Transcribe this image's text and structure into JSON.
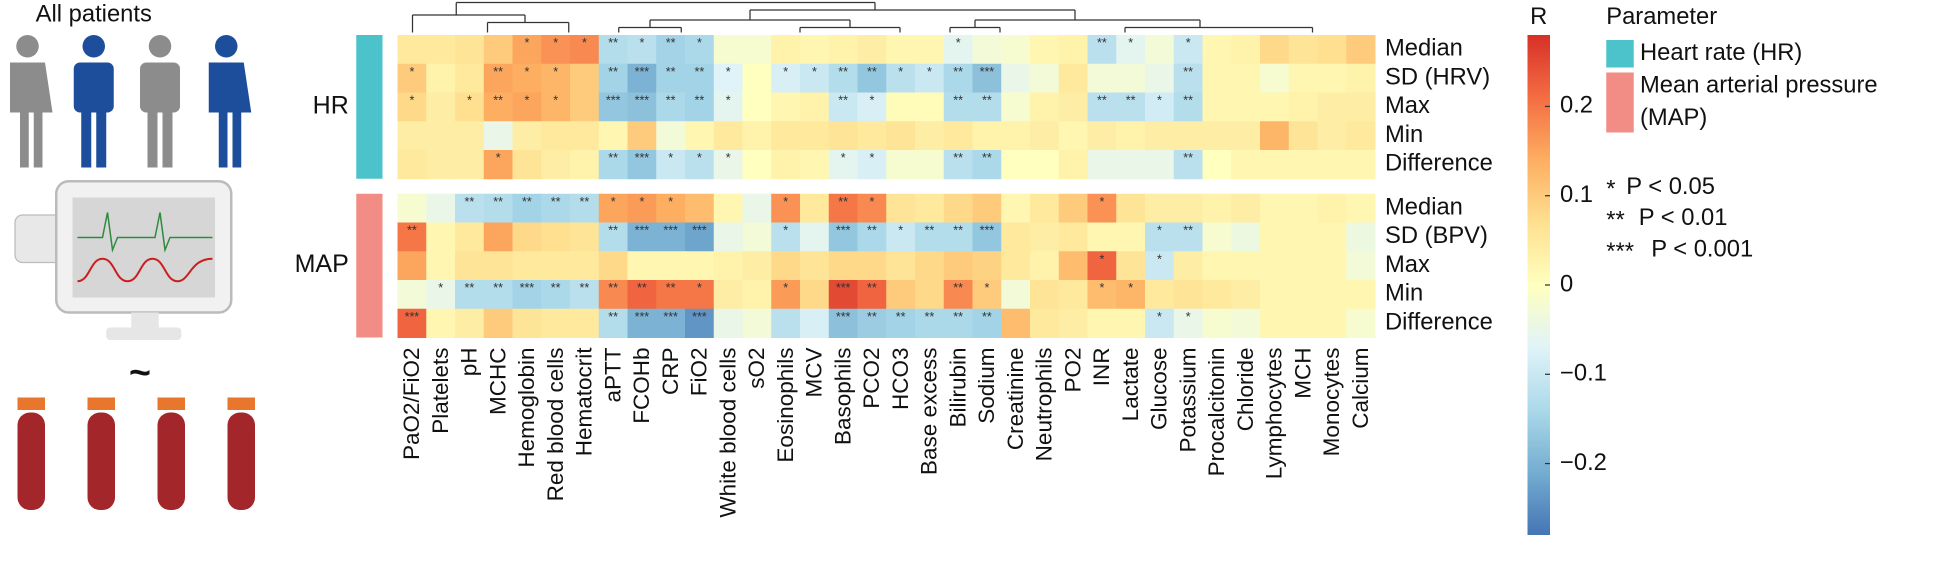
{
  "chart_data": {
    "type": "heatmap",
    "illustration_label": "All patients",
    "x": [
      "PaO2/FiO2",
      "Platelets",
      "pH",
      "MCHC",
      "Hemoglobin",
      "Red blood cells",
      "Hematocrit",
      "aPTT",
      "FCOHb",
      "CRP",
      "FiO2",
      "White blood cells",
      "sO2",
      "Eosinophils",
      "MCV",
      "Basophils",
      "PCO2",
      "HCO3",
      "Base excess",
      "Bilirubin",
      "Sodium",
      "Creatinine",
      "Neutrophils",
      "PO2",
      "INR",
      "Lactate",
      "Glucose",
      "Potassium",
      "Procalcitonin",
      "Chloride",
      "Lymphocytes",
      "MCH",
      "Monocytes",
      "Calcium"
    ],
    "y": [
      "Median",
      "SD (HRV)",
      "Max",
      "Min",
      "Difference",
      "Median",
      "SD (BPV)",
      "Max",
      "Min",
      "Difference"
    ],
    "groups": [
      {
        "label": "HR",
        "legend": [
          "Heart rate (HR)"
        ],
        "color": "#4cc3cb",
        "rows": [
          0,
          4
        ]
      },
      {
        "label": "MAP",
        "legend": [
          "Mean arterial pressure",
          "(MAP)"
        ],
        "color": "#f28d86",
        "rows": [
          5,
          9
        ]
      }
    ],
    "legend_title": "Parameter",
    "colorbar_title": "R",
    "zlim": [
      -0.28,
      0.28
    ],
    "zticks": [
      0.2,
      0.1,
      0,
      {
        "value": -0.1,
        "label": "−0.1"
      },
      {
        "value": -0.2,
        "label": "−0.2"
      }
    ],
    "colormap": [
      "#4575b4",
      "#74add1",
      "#abd9e9",
      "#e0f3f8",
      "#ffffbf",
      "#fee090",
      "#fdae61",
      "#f46d43",
      "#d73027"
    ],
    "significance": [
      {
        "stars": "*",
        "text": "P < 0.05"
      },
      {
        "stars": "**",
        "text": "P < 0.01"
      },
      {
        "stars": "***",
        "text": "P < 0.001"
      }
    ],
    "values": [
      [
        0.05,
        0.05,
        0.06,
        0.1,
        0.15,
        0.17,
        0.18,
        -0.13,
        -0.12,
        -0.15,
        -0.14,
        -0.02,
        -0.02,
        0.03,
        0.02,
        0.03,
        0.04,
        0.02,
        0.02,
        -0.06,
        -0.03,
        -0.02,
        0.02,
        0.03,
        -0.12,
        -0.06,
        -0.03,
        -0.1,
        0.02,
        0.03,
        0.08,
        0.06,
        0.07,
        0.1
      ],
      [
        0.1,
        0.03,
        0.05,
        0.15,
        0.14,
        0.13,
        0.1,
        -0.15,
        -0.2,
        -0.15,
        -0.15,
        -0.07,
        0,
        -0.08,
        -0.1,
        -0.13,
        -0.17,
        -0.12,
        -0.1,
        -0.14,
        -0.18,
        -0.05,
        -0.03,
        0.05,
        -0.03,
        -0.03,
        -0.05,
        -0.12,
        0.02,
        0.02,
        -0.02,
        0.02,
        0.02,
        0.03
      ],
      [
        0.08,
        0.04,
        0.07,
        0.14,
        0.15,
        0.13,
        0.1,
        -0.17,
        -0.18,
        -0.14,
        -0.15,
        -0.06,
        0,
        0.02,
        0.03,
        -0.1,
        -0.08,
        0.01,
        0.01,
        -0.13,
        -0.13,
        -0.02,
        0.03,
        0.04,
        -0.12,
        -0.12,
        -0.09,
        -0.13,
        0.02,
        0.02,
        0.02,
        0.03,
        0.04,
        0.04
      ],
      [
        0.04,
        0.04,
        0.04,
        -0.05,
        0.04,
        0.05,
        0.05,
        0.02,
        0.1,
        -0.03,
        0.02,
        0.05,
        0.03,
        0.05,
        0.05,
        0.06,
        0.05,
        0.06,
        0.04,
        0.05,
        0.03,
        0.03,
        0.04,
        0.02,
        0.04,
        0.03,
        0.04,
        0.04,
        0.04,
        0.04,
        0.13,
        0.06,
        0.04,
        0.05
      ],
      [
        0.05,
        0.04,
        0.04,
        0.15,
        0.06,
        0.04,
        0.03,
        -0.14,
        -0.17,
        -0.1,
        -0.12,
        -0.05,
        0,
        0.03,
        0.02,
        -0.06,
        -0.08,
        -0.02,
        -0.02,
        -0.12,
        -0.14,
        0,
        0,
        0.03,
        -0.05,
        -0.05,
        -0.05,
        -0.12,
        0,
        0.02,
        0.02,
        0.02,
        0.02,
        0.02
      ],
      [
        -0.02,
        -0.05,
        -0.12,
        -0.13,
        -0.15,
        -0.14,
        -0.13,
        0.15,
        0.16,
        0.14,
        0.12,
        0.02,
        -0.05,
        0.17,
        0.05,
        0.2,
        0.18,
        0.06,
        0.05,
        0.08,
        0.1,
        0.02,
        0.05,
        0.1,
        0.17,
        0.06,
        0.04,
        0.04,
        0.03,
        0.04,
        0.02,
        0.02,
        0.03,
        0.02
      ],
      [
        0.2,
        0.02,
        0.05,
        0.15,
        0.08,
        0.07,
        0.06,
        -0.13,
        -0.2,
        -0.2,
        -0.22,
        -0.05,
        -0.03,
        -0.12,
        -0.06,
        -0.17,
        -0.14,
        -0.1,
        -0.13,
        -0.13,
        -0.17,
        0.05,
        0.04,
        0.05,
        0.02,
        0.02,
        -0.12,
        -0.12,
        -0.02,
        -0.04,
        0.02,
        0.02,
        0.02,
        -0.04
      ],
      [
        0.15,
        0.02,
        0.06,
        0.06,
        0.05,
        0.05,
        0.05,
        0.08,
        0.02,
        0.02,
        0.02,
        0.03,
        0.04,
        0.08,
        0.06,
        0.08,
        0.08,
        0.06,
        0.08,
        0.1,
        0.09,
        0.05,
        0.03,
        0.12,
        0.22,
        0.06,
        -0.1,
        0.04,
        0.02,
        0.02,
        0.02,
        0.02,
        0.02,
        -0.03
      ],
      [
        -0.03,
        -0.05,
        -0.13,
        -0.13,
        -0.15,
        -0.14,
        -0.12,
        0.18,
        0.22,
        0.2,
        0.2,
        0.04,
        0.03,
        0.16,
        0.08,
        0.25,
        0.22,
        0.1,
        0.08,
        0.18,
        0.1,
        -0.03,
        0.06,
        0.05,
        0.12,
        0.13,
        0.05,
        0.06,
        0.05,
        0.04,
        0.02,
        0.02,
        0.02,
        0.02
      ],
      [
        0.22,
        0.02,
        0.04,
        0.1,
        0.06,
        0.05,
        0.05,
        -0.13,
        -0.2,
        -0.2,
        -0.24,
        -0.05,
        -0.03,
        -0.12,
        -0.08,
        -0.18,
        -0.16,
        -0.15,
        -0.14,
        -0.14,
        -0.15,
        0.12,
        0.05,
        0.04,
        0.02,
        0.02,
        -0.1,
        -0.05,
        -0.02,
        -0.03,
        0.02,
        0.02,
        0.02,
        -0.02
      ]
    ],
    "stars": [
      [
        null,
        null,
        null,
        null,
        "*",
        "*",
        "*",
        "**",
        "*",
        "**",
        "*",
        null,
        null,
        null,
        null,
        null,
        null,
        null,
        null,
        "*",
        null,
        null,
        null,
        null,
        "**",
        "*",
        null,
        "*",
        null,
        null,
        null,
        null,
        null,
        null
      ],
      [
        "*",
        null,
        null,
        "**",
        "*",
        "*",
        null,
        "**",
        "***",
        "**",
        "**",
        "*",
        null,
        "*",
        "*",
        "**",
        "**",
        "*",
        "*",
        "**",
        "***",
        null,
        null,
        null,
        null,
        null,
        null,
        "**",
        null,
        null,
        null,
        null,
        null,
        null
      ],
      [
        "*",
        null,
        "*",
        "**",
        "*",
        "*",
        null,
        "***",
        "***",
        "**",
        "**",
        "*",
        null,
        null,
        null,
        "**",
        "*",
        null,
        null,
        "**",
        "**",
        null,
        null,
        null,
        "**",
        "**",
        "*",
        "**",
        null,
        null,
        null,
        null,
        null,
        null
      ],
      [
        null,
        null,
        null,
        null,
        null,
        null,
        null,
        null,
        null,
        null,
        null,
        null,
        null,
        null,
        null,
        null,
        null,
        null,
        null,
        null,
        null,
        null,
        null,
        null,
        null,
        null,
        null,
        null,
        null,
        null,
        null,
        null,
        null,
        null
      ],
      [
        null,
        null,
        null,
        "*",
        null,
        null,
        null,
        "**",
        "***",
        "*",
        "*",
        "*",
        null,
        null,
        null,
        "*",
        "*",
        null,
        null,
        "**",
        "**",
        null,
        null,
        null,
        null,
        null,
        null,
        "**",
        null,
        null,
        null,
        null,
        null,
        null
      ],
      [
        null,
        null,
        "**",
        "**",
        "**",
        "**",
        "**",
        "*",
        "*",
        "*",
        null,
        null,
        null,
        "*",
        null,
        "**",
        "*",
        null,
        null,
        null,
        null,
        null,
        null,
        null,
        "*",
        null,
        null,
        null,
        null,
        null,
        null,
        null,
        null,
        null
      ],
      [
        "**",
        null,
        null,
        null,
        null,
        null,
        null,
        "**",
        "***",
        "***",
        "***",
        null,
        null,
        "*",
        null,
        "***",
        "**",
        "*",
        "**",
        "**",
        "***",
        null,
        null,
        null,
        null,
        null,
        "*",
        "**",
        null,
        null,
        null,
        null,
        null,
        null
      ],
      [
        null,
        null,
        null,
        null,
        null,
        null,
        null,
        null,
        null,
        null,
        null,
        null,
        null,
        null,
        null,
        null,
        null,
        null,
        null,
        null,
        null,
        null,
        null,
        null,
        "*",
        null,
        "*",
        null,
        null,
        null,
        null,
        null,
        null,
        null
      ],
      [
        null,
        "*",
        "**",
        "**",
        "***",
        "**",
        "**",
        "**",
        "**",
        "**",
        "*",
        null,
        null,
        "*",
        null,
        "***",
        "**",
        null,
        null,
        "**",
        "*",
        null,
        null,
        null,
        "*",
        "*",
        null,
        null,
        null,
        null,
        null,
        null,
        null,
        null
      ],
      [
        "***",
        null,
        null,
        null,
        null,
        null,
        null,
        "**",
        "***",
        "***",
        "***",
        null,
        null,
        null,
        null,
        "***",
        "**",
        "**",
        "**",
        "**",
        "**",
        null,
        null,
        null,
        null,
        null,
        "*",
        "*",
        null,
        null,
        null,
        null,
        null,
        null
      ]
    ]
  }
}
